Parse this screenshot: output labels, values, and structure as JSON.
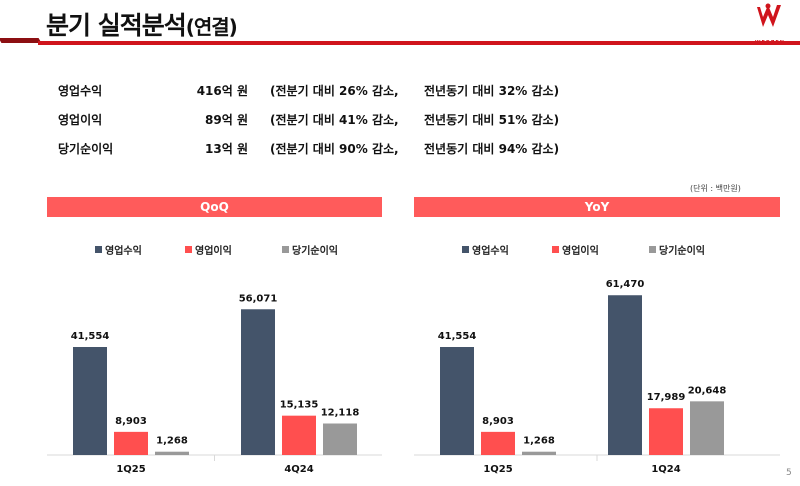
{
  "header": {
    "title": "분기 실적분석",
    "title_suffix": "(연결)",
    "logo_text": "WEBZEN",
    "brand_color": "#d0141c"
  },
  "summary": [
    {
      "label": "영업수익",
      "value": "416억 원",
      "qoq": "(전분기 대비 26% 감소,",
      "yoy": "전년동기 대비 32% 감소)"
    },
    {
      "label": "영업이익",
      "value": "89억 원",
      "qoq": "(전분기 대비 41% 감소,",
      "yoy": "전년동기 대비 51% 감소)"
    },
    {
      "label": "당기순이익",
      "value": "13억 원",
      "qoq": "(전분기 대비 90% 감소,",
      "yoy": "전년동기 대비 94% 감소)"
    }
  ],
  "unit_note": "(단위 : 백만원)",
  "page_number": "5",
  "chart_data": [
    {
      "type": "bar",
      "title": "QoQ",
      "categories": [
        "1Q25",
        "4Q24"
      ],
      "legend": "top",
      "series": [
        {
          "name": "영업수익",
          "color": "#44546a",
          "values": [
            41554,
            56071
          ],
          "labels": [
            "41,554",
            "56,071"
          ]
        },
        {
          "name": "영업이익",
          "color": "#ff4f4f",
          "values": [
            8903,
            15135
          ],
          "labels": [
            "8,903",
            "15,135"
          ]
        },
        {
          "name": "당기순이익",
          "color": "#999999",
          "values": [
            1268,
            12118
          ],
          "labels": [
            "1,268",
            "12,118"
          ]
        }
      ]
    },
    {
      "type": "bar",
      "title": "YoY",
      "categories": [
        "1Q25",
        "1Q24"
      ],
      "legend": "top",
      "series": [
        {
          "name": "영업수익",
          "color": "#44546a",
          "values": [
            41554,
            61470
          ],
          "labels": [
            "41,554",
            "61,470"
          ]
        },
        {
          "name": "영업이익",
          "color": "#ff4f4f",
          "values": [
            8903,
            17989
          ],
          "labels": [
            "8,903",
            "17,989"
          ]
        },
        {
          "name": "당기순이익",
          "color": "#999999",
          "values": [
            1268,
            20648
          ],
          "labels": [
            "1,268",
            "20,648"
          ]
        }
      ]
    }
  ]
}
